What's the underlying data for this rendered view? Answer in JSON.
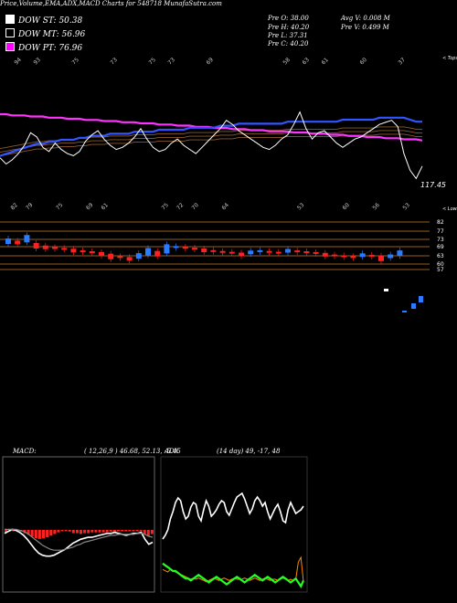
{
  "header": {
    "title": "Price,Volume,EMA,ADX,MACD Charts for 548718 MunafaSutra.com"
  },
  "legend": [
    {
      "label": "DOW ST: 50.38",
      "color": "#ffffff"
    },
    {
      "label": "DOW MT: 56.96",
      "color": "#000000"
    },
    {
      "label": "DOW PT: 76.96",
      "color": "#ff00ff"
    }
  ],
  "stats": {
    "col1": [
      "Pre O: 38.00",
      "Pre H: 40.20",
      "Pre L: 37.31",
      "Pre C: 40.20"
    ],
    "col2": [
      "Avg V: 0.008 M",
      "Pre V: 0.499 M"
    ]
  },
  "price_panel": {
    "top_label": "< Tops",
    "bottom_label": "< Lows",
    "last_price_label": "117.45",
    "top_ticks": [
      "94",
      "93",
      "",
      "75",
      "",
      "73",
      "",
      "75",
      "73",
      "",
      "69",
      "",
      "",
      "",
      "58",
      "63",
      "61",
      "",
      "60",
      "",
      "37"
    ],
    "bottom_ticks": [
      "82",
      "79",
      "",
      "75",
      "",
      "69",
      "61",
      "",
      "",
      "",
      "75",
      "72",
      "70",
      "",
      "64",
      "",
      "",
      "",
      "",
      "53",
      "",
      "",
      "60",
      "",
      "56",
      "",
      "53"
    ]
  },
  "scale_labels": [
    "82",
    "77",
    "73",
    "69",
    "63",
    "60",
    "57"
  ],
  "macd_panel": {
    "label": "MACD:",
    "values": "( 12,26,9 ) 46.68, 52.13, -5.45"
  },
  "adx_panel": {
    "label": "ADX",
    "values": "(14 day) 49, -17, 48"
  },
  "colors": {
    "ema_blue": "#3355ff",
    "ema_magenta": "#ff33ff",
    "ema_brown": "#8b5a2b",
    "up": "#2b7bff",
    "down": "#ff2020",
    "macd_green": "#22ff22",
    "adx_orange": "#ff8800"
  },
  "chart_data": [
    {
      "type": "line",
      "title": "Price",
      "x": [
        0,
        1,
        2,
        3,
        4,
        5,
        6,
        7,
        8,
        9,
        10,
        11,
        12,
        13,
        14,
        15,
        16,
        17,
        18,
        19,
        20,
        21,
        22,
        23,
        24,
        25,
        26,
        27,
        28,
        29,
        30,
        31,
        32,
        33,
        34,
        35,
        36,
        37,
        38,
        39,
        40,
        41,
        42,
        43,
        44,
        45,
        46,
        47,
        48,
        49,
        50,
        51,
        52,
        53,
        54,
        55,
        56,
        57,
        58,
        59,
        60,
        61,
        62,
        63,
        64,
        65,
        66,
        67,
        68,
        69
      ],
      "series": [
        {
          "values": [
            124,
            121,
            123,
            126,
            130,
            136,
            134,
            129,
            127,
            131,
            128,
            126,
            125,
            127,
            132,
            135,
            137,
            133,
            130,
            128,
            129,
            131,
            134,
            138,
            133,
            129,
            127,
            128,
            131,
            133,
            130,
            128,
            126,
            129,
            132,
            135,
            138,
            142,
            140,
            137,
            135,
            133,
            131,
            129,
            128,
            130,
            133,
            135,
            140,
            146,
            138,
            133,
            136,
            137,
            134,
            131,
            129,
            131,
            133,
            134,
            136,
            138,
            140,
            141,
            142,
            139,
            126,
            118,
            114,
            120
          ]
        },
        {
          "values": [
            120,
            121,
            122,
            123,
            124,
            125,
            126,
            126,
            127,
            127,
            128,
            128,
            128,
            129,
            129,
            130,
            130,
            130,
            131,
            131,
            131,
            131,
            132,
            132,
            132,
            132,
            133,
            133,
            133,
            133,
            133,
            134,
            134,
            134,
            134,
            134,
            135,
            135,
            135,
            136,
            136,
            136,
            136,
            136,
            136,
            136,
            136,
            137,
            137,
            137,
            137,
            137,
            137,
            137,
            137,
            137,
            138,
            138,
            138,
            138,
            138,
            138,
            139,
            139,
            139,
            139,
            139,
            138,
            137,
            137
          ]
        },
        {
          "values": [
            110,
            110,
            111,
            111,
            111,
            112,
            112,
            112,
            113,
            113,
            113,
            114,
            114,
            114,
            115,
            115,
            115,
            116,
            116,
            116,
            117,
            117,
            117,
            118,
            118,
            118,
            119,
            119,
            119,
            120,
            120,
            120,
            121,
            121,
            121,
            122,
            122,
            122,
            123,
            123,
            123,
            124,
            124,
            124,
            125,
            125,
            125,
            125,
            126,
            126,
            126,
            127,
            127,
            127,
            128,
            128,
            128,
            129,
            129,
            129,
            130,
            130,
            130,
            131,
            131,
            131,
            132,
            132,
            132,
            133
          ]
        }
      ]
    },
    {
      "type": "bar",
      "title": "Candles",
      "series": [
        {
          "name": "body",
          "values": [
            3,
            -2,
            4,
            -3,
            -2,
            -1,
            -1,
            -2,
            -1,
            -1,
            -2,
            -3,
            -1,
            -2,
            3,
            4,
            -3,
            5,
            1,
            -1,
            -1,
            -2,
            -1,
            -1,
            -1,
            -2,
            2,
            1,
            -1,
            -1,
            2,
            -1,
            -1,
            -1,
            -2,
            -1,
            -1,
            -1,
            2,
            -1,
            -3,
            2,
            3
          ]
        }
      ]
    },
    {
      "type": "line",
      "title": "MACD",
      "series": [
        {
          "name": "MACD",
          "values": [
            46,
            48,
            50,
            49,
            47,
            44,
            40,
            35,
            30,
            26,
            24,
            23,
            23,
            24,
            26,
            28,
            30,
            33,
            36,
            38,
            40,
            41,
            42,
            42,
            43,
            44,
            45,
            46,
            46,
            47,
            46,
            45,
            44,
            45,
            46,
            46,
            47,
            40,
            35,
            37
          ]
        },
        {
          "name": "signal",
          "values": [
            50,
            50,
            50,
            50,
            49,
            48,
            46,
            43,
            40,
            37,
            34,
            32,
            30,
            29,
            29,
            29,
            30,
            31,
            32,
            34,
            35,
            37,
            38,
            39,
            40,
            41,
            42,
            43,
            44,
            44,
            45,
            45,
            45,
            45,
            45,
            46,
            46,
            45,
            43,
            42
          ]
        }
      ]
    },
    {
      "type": "line",
      "title": "ADX",
      "series": [
        {
          "name": "ADX",
          "values": [
            30,
            34,
            40,
            52,
            60,
            70,
            75,
            72,
            60,
            52,
            55,
            65,
            70,
            68,
            55,
            50,
            62,
            72,
            66,
            55,
            58,
            62,
            68,
            72,
            70,
            60,
            56,
            63,
            70,
            76,
            78,
            80,
            74,
            66,
            58,
            63,
            72,
            76,
            72,
            66,
            70,
            60,
            52,
            58,
            64,
            68,
            60,
            50,
            48,
            62,
            70,
            64,
            58,
            60,
            62,
            66
          ]
        },
        {
          "name": "+DI",
          "values": [
            20,
            19,
            18,
            20,
            19,
            18,
            17,
            16,
            15,
            14,
            13,
            12,
            13,
            12,
            13,
            12,
            11,
            10,
            11,
            12,
            13,
            12,
            11,
            12,
            13,
            12,
            11,
            12,
            13,
            12,
            12,
            12,
            13,
            12,
            11,
            12,
            13,
            12,
            11,
            12,
            13,
            12,
            11,
            12,
            12,
            11,
            12,
            13,
            12,
            11,
            12,
            11,
            12,
            26,
            30,
            10
          ]
        },
        {
          "name": "-DI",
          "values": [
            16,
            15,
            14,
            13,
            12,
            12,
            11,
            10,
            9,
            8,
            8,
            7,
            8,
            9,
            10,
            9,
            8,
            7,
            6,
            7,
            8,
            9,
            8,
            7,
            6,
            5,
            6,
            7,
            8,
            9,
            8,
            7,
            6,
            7,
            8,
            9,
            10,
            9,
            8,
            7,
            8,
            9,
            8,
            7,
            6,
            7,
            8,
            9,
            8,
            7,
            6,
            7,
            8,
            6,
            4,
            7
          ]
        }
      ]
    }
  ]
}
